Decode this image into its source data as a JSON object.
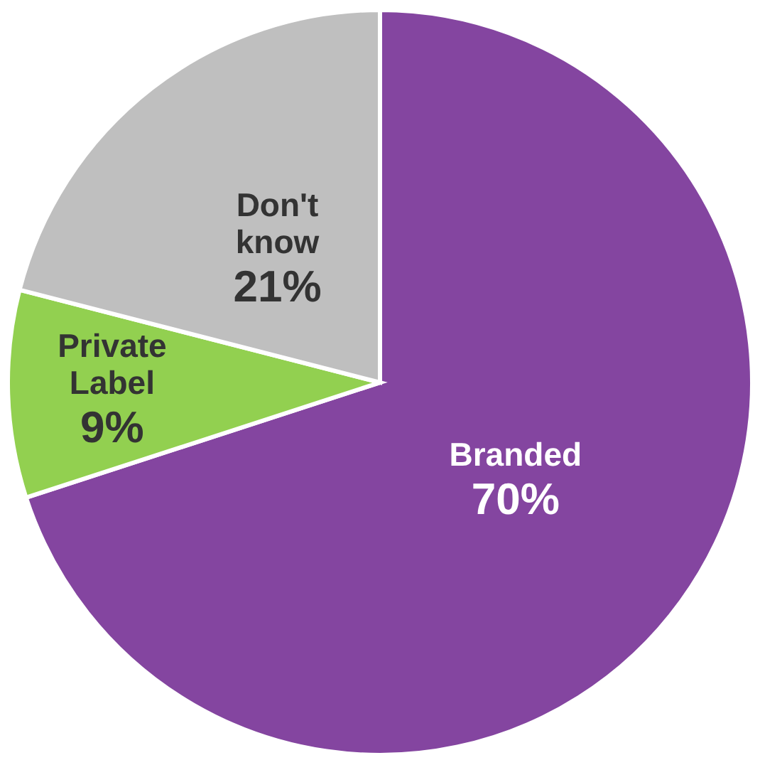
{
  "chart_data": {
    "type": "pie",
    "categories": [
      "Branded",
      "Private Label",
      "Don't know"
    ],
    "values": [
      70,
      9,
      21
    ],
    "colors": [
      "#8445a0",
      "#92d050",
      "#bfbfbf"
    ],
    "value_labels": [
      "70%",
      "9%",
      "21%"
    ]
  }
}
